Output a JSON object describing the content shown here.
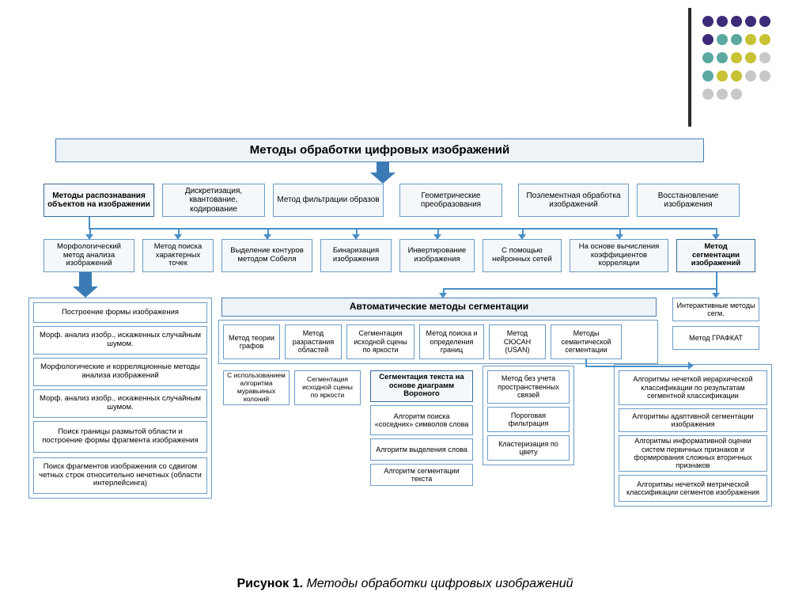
{
  "type": "flowchart",
  "background_color": "#ffffff",
  "colors": {
    "title_border": "#4a7db5",
    "title_bg": "#eef3f8",
    "box_border": "#6b9bc7",
    "box_bg": "#f4f8fb",
    "box_bg_light": "#ffffff",
    "bold_border": "#3a6a9a",
    "arrow": "#4a90c8",
    "big_arrow": "#3a7bb5",
    "line": "#6b9bc7",
    "dot_purple": "#3d2b7a",
    "dot_teal": "#5aa8a0",
    "dot_yellow": "#c8c235",
    "dot_grey": "#c8c8c8",
    "caption_color": "#222222"
  },
  "title": "Методы обработки цифровых изображений",
  "caption_label": "Рисунок 1.",
  "caption_text": "Методы обработки цифровых изображений",
  "row1": [
    "Методы распознавания объектов на изображении",
    "Дискретизация, квантование, кодирование",
    "Метод фильтрации образов",
    "Геометрические преобразования",
    "Поэлементная обработка изображений",
    "Восстановление изображения"
  ],
  "row2": [
    "Морфологический метод анализа изображений",
    "Метод поиска характерных точек",
    "Выделение контуров методом Собеля",
    "Бинаризация изображения",
    "Инвертирование изображения",
    "С помощью нейронных сетей",
    "На основе вычисления коэффициентов корреляции",
    "Метод сегментации изображений"
  ],
  "left_col": [
    "Построение формы изображения",
    "Морф. анализ изобр., искаженных случайным шумом.",
    "Морфологические и корреляционные методы анализа изображений",
    "Морф. анализ изобр., искаженных случайным шумом.",
    "Поиск границы размытой области и построение формы фрагмента изображения",
    "Поиск фрагментов изображения со сдвигом четных строк относительно нечетных (области интерлейсинга)"
  ],
  "auto_title": "Автоматические методы сегментации",
  "auto_row": [
    "Метод теории графов",
    "Метод разрастания областей",
    "Сегментация исходной сцены по яркости",
    "Метод поиска и определения границ",
    "Метод СЮСАН (USAN)",
    "Методы семантической сегментации"
  ],
  "sub_left": [
    "С использованием алгоритма муравьиных колоний",
    "Сегментация исходной сцены по яркости"
  ],
  "voronoi_title": "Сегментация текста на основе диаграмм Вороного",
  "voronoi_items": [
    "Алгоритм поиска «соседних» символов слова",
    "Алгоритм выделения слова",
    "Алгоритм сегментации текста"
  ],
  "mid_col": [
    "Метод без учета пространственных связей",
    "Пороговая фильтрация",
    "Кластеризация по цвету"
  ],
  "right_top": [
    "Интерактивные методы сегм.",
    "Метод ГРАФКАТ"
  ],
  "right_algs": [
    "Алгоритмы нечеткой иерархической классификации по результатам сегментной классификации",
    "Алгоритмы адаптивной сегментации изображения",
    "Алгоритмы информативной оценки систем первичных признаков и формирования сложных вторичных признаков",
    "Алгоритмы нечеткой метрической классификации сегментов изображения"
  ],
  "dot_pattern": [
    [
      "dot_purple",
      "dot_purple",
      "dot_purple",
      "dot_purple",
      "dot_purple"
    ],
    [
      "dot_purple",
      "dot_teal",
      "dot_teal",
      "dot_yellow",
      "dot_yellow"
    ],
    [
      "dot_teal",
      "dot_teal",
      "dot_yellow",
      "dot_yellow",
      "dot_grey"
    ],
    [
      "dot_teal",
      "dot_yellow",
      "dot_yellow",
      "dot_grey",
      "dot_grey"
    ],
    [
      "dot_grey",
      "dot_grey",
      "dot_grey",
      "",
      ""
    ]
  ]
}
